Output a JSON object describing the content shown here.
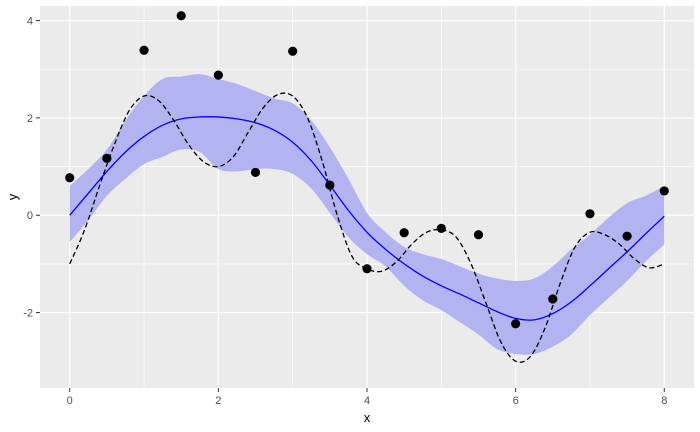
{
  "chart_data": {
    "type": "line",
    "xlabel": "x",
    "ylabel": "y",
    "xlim": [
      -0.4,
      8.4
    ],
    "ylim": [
      -3.55,
      4.3
    ],
    "x_ticks": [
      0,
      2,
      4,
      6,
      8
    ],
    "y_ticks": [
      -2,
      0,
      2,
      4
    ],
    "grid": true,
    "legend": "none",
    "colors": {
      "panel": "#ebebeb",
      "grid_major": "#ffffff",
      "points": "#000000",
      "fitted_line": "#0000ff",
      "band_fill": "#b3b3f2",
      "true_curve": "#000000"
    },
    "series": [
      {
        "type": "scatter",
        "x": [
          0,
          0.5,
          1,
          1.5,
          2,
          2.5,
          3,
          3.5,
          4,
          4.5,
          5,
          5.5,
          6,
          6.5,
          7,
          7.5,
          8
        ],
        "y": [
          0.77,
          1.17,
          3.39,
          4.1,
          2.88,
          0.88,
          3.37,
          0.62,
          -1.1,
          -0.36,
          -0.27,
          -0.4,
          -2.23,
          -1.72,
          0.03,
          -0.43,
          0.5
        ]
      },
      {
        "type": "line",
        "style": "solid",
        "x": [
          0,
          0.25,
          0.5,
          0.75,
          1,
          1.25,
          1.5,
          1.75,
          2,
          2.25,
          2.5,
          2.75,
          3,
          3.25,
          3.5,
          3.75,
          4,
          4.25,
          4.5,
          4.75,
          5,
          5.25,
          5.5,
          5.75,
          6,
          6.25,
          6.5,
          6.75,
          7,
          7.25,
          7.5,
          7.75,
          8
        ],
        "y": [
          0.0,
          0.45,
          0.9,
          1.3,
          1.62,
          1.85,
          1.98,
          2.02,
          2.02,
          1.98,
          1.9,
          1.75,
          1.5,
          1.12,
          0.62,
          0.1,
          -0.35,
          -0.7,
          -1.0,
          -1.25,
          -1.45,
          -1.62,
          -1.8,
          -1.98,
          -2.12,
          -2.15,
          -2.02,
          -1.78,
          -1.45,
          -1.1,
          -0.75,
          -0.38,
          -0.02
        ]
      },
      {
        "type": "band",
        "x": [
          0,
          0.25,
          0.5,
          0.75,
          1,
          1.25,
          1.5,
          1.75,
          2,
          2.25,
          2.5,
          2.75,
          3,
          3.25,
          3.5,
          3.75,
          4,
          4.25,
          4.5,
          4.75,
          5,
          5.25,
          5.5,
          5.75,
          6,
          6.25,
          6.5,
          6.75,
          7,
          7.25,
          7.5,
          7.75,
          8
        ],
        "lower": [
          -0.55,
          -0.1,
          0.4,
          0.75,
          1.05,
          1.2,
          1.35,
          1.3,
          0.95,
          0.9,
          0.95,
          0.95,
          0.85,
          0.55,
          0.05,
          -0.45,
          -0.8,
          -1.05,
          -1.45,
          -1.75,
          -1.95,
          -2.2,
          -2.45,
          -2.75,
          -2.85,
          -2.85,
          -2.7,
          -2.45,
          -2.05,
          -1.7,
          -1.35,
          -0.95,
          -0.6
        ],
        "upper": [
          0.6,
          0.95,
          1.35,
          1.95,
          2.45,
          2.8,
          2.85,
          2.9,
          2.8,
          2.7,
          2.55,
          2.4,
          2.3,
          1.95,
          1.4,
          0.75,
          0.05,
          -0.35,
          -0.65,
          -0.8,
          -0.9,
          -1.05,
          -1.2,
          -1.3,
          -1.35,
          -1.3,
          -1.05,
          -0.7,
          -0.4,
          -0.05,
          0.25,
          0.4,
          0.6
        ]
      },
      {
        "type": "line",
        "style": "dashed",
        "x": [
          0,
          0.2,
          0.4,
          0.6,
          0.8,
          1,
          1.2,
          1.4,
          1.6,
          1.8,
          2,
          2.2,
          2.4,
          2.6,
          2.8,
          3,
          3.2,
          3.4,
          3.6,
          3.8,
          4,
          4.2,
          4.4,
          4.6,
          4.8,
          5,
          5.2,
          5.4,
          5.6,
          5.8,
          6,
          6.2,
          6.4,
          6.6,
          6.8,
          7,
          7.2,
          7.4,
          7.6,
          7.8,
          8
        ],
        "y": [
          -1.0,
          -0.3,
          0.6,
          1.45,
          2.15,
          2.45,
          2.35,
          1.95,
          1.45,
          1.1,
          1.0,
          1.2,
          1.7,
          2.2,
          2.48,
          2.45,
          2.0,
          1.1,
          0.0,
          -0.85,
          -1.1,
          -1.15,
          -0.95,
          -0.6,
          -0.35,
          -0.3,
          -0.45,
          -1.0,
          -1.8,
          -2.6,
          -3.0,
          -2.9,
          -2.3,
          -1.4,
          -0.65,
          -0.35,
          -0.4,
          -0.6,
          -0.9,
          -1.08,
          -1.0
        ]
      }
    ]
  }
}
